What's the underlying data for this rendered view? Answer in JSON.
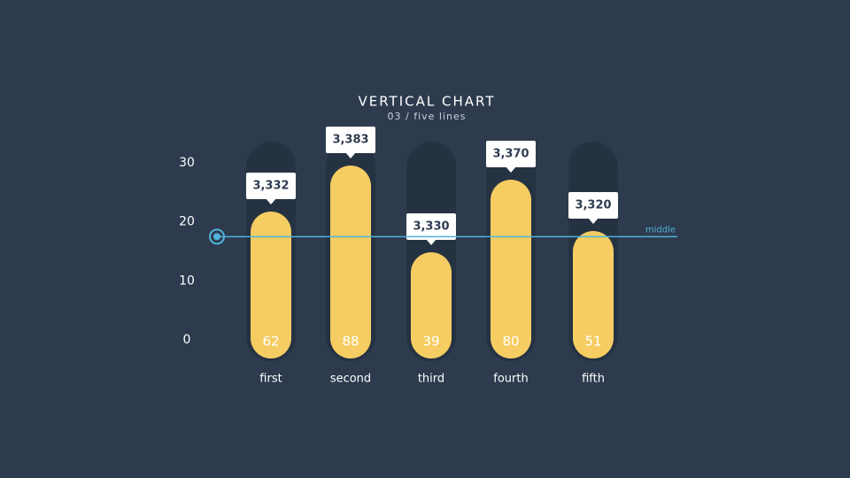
{
  "chart_data": {
    "type": "bar",
    "title": "VERTICAL CHART",
    "subtitle": "03 / five lines",
    "categories": [
      "first",
      "second",
      "third",
      "fourth",
      "fifth"
    ],
    "series": [
      {
        "name": null,
        "color": "#f6cd63",
        "axis": "y2",
        "values": [
          62,
          88,
          39,
          80,
          51
        ],
        "callout_labels": [
          "3,332",
          "3,383",
          "3,330",
          "3,370",
          "3,320"
        ]
      }
    ],
    "ylim": [
      0,
      30
    ],
    "yticks": [
      0,
      10,
      20,
      30
    ],
    "y2lim": [
      0,
      100
    ],
    "reference_line": {
      "value": 17.5,
      "label": "middle",
      "color": "#4fb3d9"
    }
  }
}
